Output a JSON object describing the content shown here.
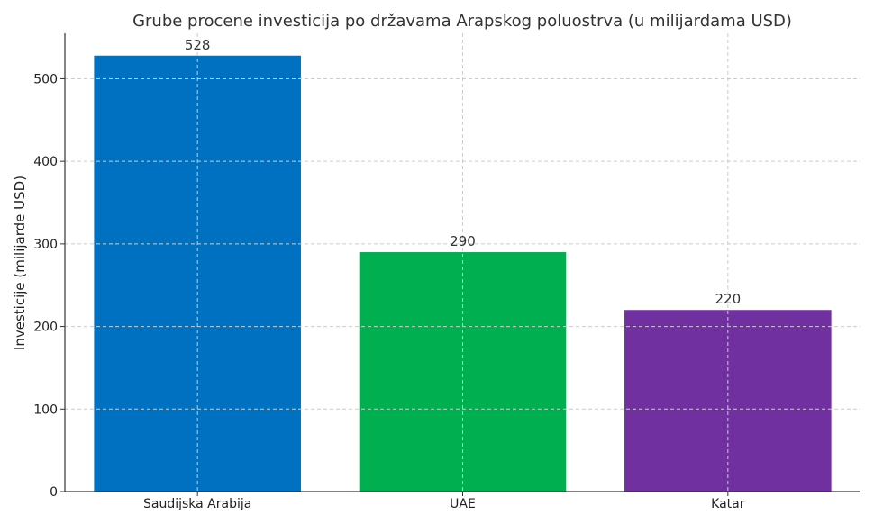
{
  "chart_data": {
    "type": "bar",
    "title": "Grube procene investicija po državama Arapskog poluostrva (u milijardama USD)",
    "ylabel": "Investicije (milijarde USD)",
    "xlabel": "",
    "categories": [
      "Saudijska Arabija",
      "UAE",
      "Katar"
    ],
    "values": [
      528,
      290,
      220
    ],
    "colors": [
      "#0070c0",
      "#00b050",
      "#7030a0"
    ],
    "ylim": [
      0,
      555
    ],
    "yticks": [
      0,
      100,
      200,
      300,
      400,
      500
    ],
    "grid": true,
    "value_labels": [
      "528",
      "290",
      "220"
    ]
  }
}
